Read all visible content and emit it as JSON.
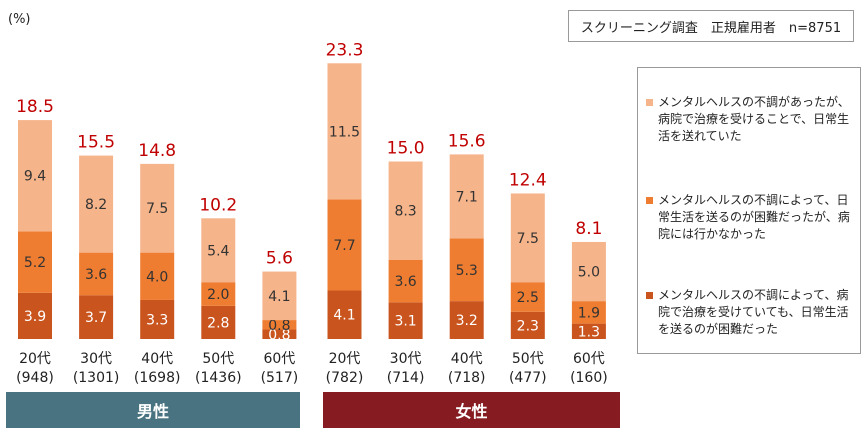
{
  "unit_label": "(%)",
  "note": "スクリーニング調査　正規雇用者　n=8751",
  "groups": {
    "male": "男性",
    "female": "女性"
  },
  "legend": [
    {
      "text": "メンタルヘルスの不調があったが、病院で治療を受けることで、日常生活を送れていた",
      "color": "#f5b48a"
    },
    {
      "text": "メンタルヘルスの不調によって、日常生活を送るのが困難だったが、病院には行かなかった",
      "color": "#ee7d31"
    },
    {
      "text": "メンタルヘルスの不調によって、病院で治療を受けていても、日常生活を送るのが困難だった",
      "color": "#c9541d"
    }
  ],
  "colors": {
    "total_label": "#c00000",
    "segment_text": "#333333",
    "segment_text_dark": "#ffffff"
  },
  "chart_data": {
    "type": "bar",
    "stacked": true,
    "categories": [
      "20代",
      "30代",
      "40代",
      "50代",
      "60代",
      "20代",
      "30代",
      "40代",
      "50代",
      "60代"
    ],
    "sample_sizes": [
      "(948)",
      "(1301)",
      "(1698)",
      "(1436)",
      "(517)",
      "(782)",
      "(714)",
      "(718)",
      "(477)",
      "(160)"
    ],
    "group_of_category": [
      "男性",
      "男性",
      "男性",
      "男性",
      "男性",
      "女性",
      "女性",
      "女性",
      "女性",
      "女性"
    ],
    "series": [
      {
        "name": "メンタルヘルスの不調によって、病院で治療を受けていても、日常生活を送るのが困難だった",
        "values": [
          3.9,
          3.7,
          3.3,
          2.8,
          0.8,
          4.1,
          3.1,
          3.2,
          2.3,
          1.3
        ],
        "color": "#c9541d"
      },
      {
        "name": "メンタルヘルスの不調によって、日常生活を送るのが困難だったが、病院には行かなかった",
        "values": [
          5.2,
          3.6,
          4.0,
          2.0,
          0.8,
          7.7,
          3.6,
          5.3,
          2.5,
          1.9
        ],
        "color": "#ee7d31"
      },
      {
        "name": "メンタルヘルスの不調があったが、病院で治療を受けることで、日常生活を送れていた",
        "values": [
          9.4,
          8.2,
          7.5,
          5.4,
          4.1,
          11.5,
          8.3,
          7.1,
          7.5,
          5.0
        ],
        "color": "#f5b48a"
      }
    ],
    "totals": [
      18.5,
      15.5,
      14.8,
      10.2,
      5.6,
      23.3,
      15.0,
      15.6,
      12.4,
      8.1
    ],
    "ylim": [
      0,
      24
    ],
    "grid": false,
    "legend_position": "right"
  }
}
